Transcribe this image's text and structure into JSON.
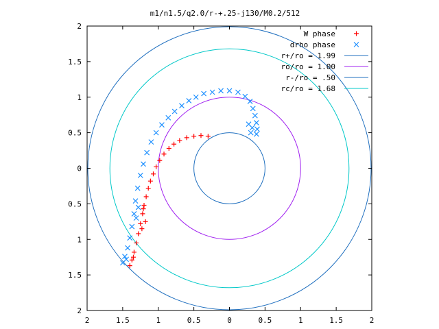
{
  "chart_data": {
    "type": "scatter",
    "title": "m1/n1.5/q2.0/r-+.25-j130/M0.2/512",
    "xlim": [
      -2,
      2
    ],
    "ylim": [
      -2,
      2
    ],
    "x_ticks": [
      "2",
      "1.5",
      "1",
      "0.5",
      "0",
      "0.5",
      "1",
      "1.5",
      "2"
    ],
    "x_tick_values": [
      -2,
      -1.5,
      -1,
      -0.5,
      0,
      0.5,
      1,
      1.5,
      2
    ],
    "y_ticks": [
      "2",
      "1.5",
      "1",
      "0.5",
      "0",
      "0.5",
      "1",
      "1.5",
      "2"
    ],
    "y_tick_values": [
      2,
      1.5,
      1,
      0.5,
      0,
      -0.5,
      -1,
      -1.5,
      -2
    ],
    "grid": false,
    "legend_placement": "top-right",
    "series": [
      {
        "name": "W phase",
        "kind": "points",
        "marker": "plus",
        "color": "#ff0000",
        "points": [
          [
            -0.3,
            0.45
          ],
          [
            -0.4,
            0.46
          ],
          [
            -0.5,
            0.45
          ],
          [
            -0.6,
            0.43
          ],
          [
            -0.7,
            0.39
          ],
          [
            -0.78,
            0.34
          ],
          [
            -0.85,
            0.28
          ],
          [
            -0.92,
            0.2
          ],
          [
            -0.98,
            0.11
          ],
          [
            -1.03,
            0.02
          ],
          [
            -1.07,
            -0.08
          ],
          [
            -1.11,
            -0.18
          ],
          [
            -1.14,
            -0.28
          ],
          [
            -1.17,
            -0.4
          ],
          [
            -1.2,
            -0.52
          ],
          [
            -1.22,
            -0.64
          ],
          [
            -1.25,
            -0.78
          ],
          [
            -1.28,
            -0.92
          ],
          [
            -1.31,
            -1.05
          ],
          [
            -1.34,
            -1.18
          ],
          [
            -1.37,
            -1.29
          ],
          [
            -1.4,
            -1.37
          ],
          [
            -1.21,
            -0.57
          ],
          [
            -1.18,
            -0.75
          ],
          [
            -1.23,
            -0.85
          ],
          [
            -1.35,
            -1.25
          ]
        ]
      },
      {
        "name": "drho phase",
        "kind": "points",
        "marker": "cross",
        "color": "#1e90ff",
        "points": [
          [
            0.38,
            0.48
          ],
          [
            0.39,
            0.55
          ],
          [
            0.38,
            0.64
          ],
          [
            0.36,
            0.74
          ],
          [
            0.33,
            0.84
          ],
          [
            0.29,
            0.94
          ],
          [
            0.22,
            1.01
          ],
          [
            0.12,
            1.07
          ],
          [
            0.0,
            1.09
          ],
          [
            -0.12,
            1.09
          ],
          [
            -0.24,
            1.07
          ],
          [
            -0.36,
            1.05
          ],
          [
            -0.47,
            1.0
          ],
          [
            -0.57,
            0.95
          ],
          [
            -0.67,
            0.88
          ],
          [
            -0.77,
            0.8
          ],
          [
            -0.86,
            0.71
          ],
          [
            -0.95,
            0.61
          ],
          [
            -1.03,
            0.5
          ],
          [
            -1.1,
            0.37
          ],
          [
            -1.16,
            0.22
          ],
          [
            -1.21,
            0.06
          ],
          [
            -1.25,
            -0.1
          ],
          [
            -1.29,
            -0.28
          ],
          [
            -1.32,
            -0.46
          ],
          [
            -1.34,
            -0.64
          ],
          [
            -1.37,
            -0.82
          ],
          [
            -1.4,
            -0.98
          ],
          [
            -1.43,
            -1.12
          ],
          [
            -1.47,
            -1.24
          ],
          [
            -1.5,
            -1.33
          ],
          [
            0.3,
            0.5
          ],
          [
            0.27,
            0.62
          ],
          [
            0.32,
            0.57
          ],
          [
            -1.45,
            -1.28
          ],
          [
            -1.28,
            -0.55
          ],
          [
            -1.31,
            -0.7
          ]
        ]
      },
      {
        "name": "r+/ro = 1.99",
        "kind": "circle",
        "radius": 1.99,
        "color": "#1f6fbf"
      },
      {
        "name": "ro/ro = 1.00",
        "kind": "circle",
        "radius": 1.0,
        "color": "#a020f0"
      },
      {
        "name": "r-/ro = .50",
        "kind": "circle",
        "radius": 0.5,
        "color": "#1f6fbf"
      },
      {
        "name": "rc/ro = 1.68",
        "kind": "circle",
        "radius": 1.68,
        "color": "#00c8c8"
      }
    ]
  }
}
